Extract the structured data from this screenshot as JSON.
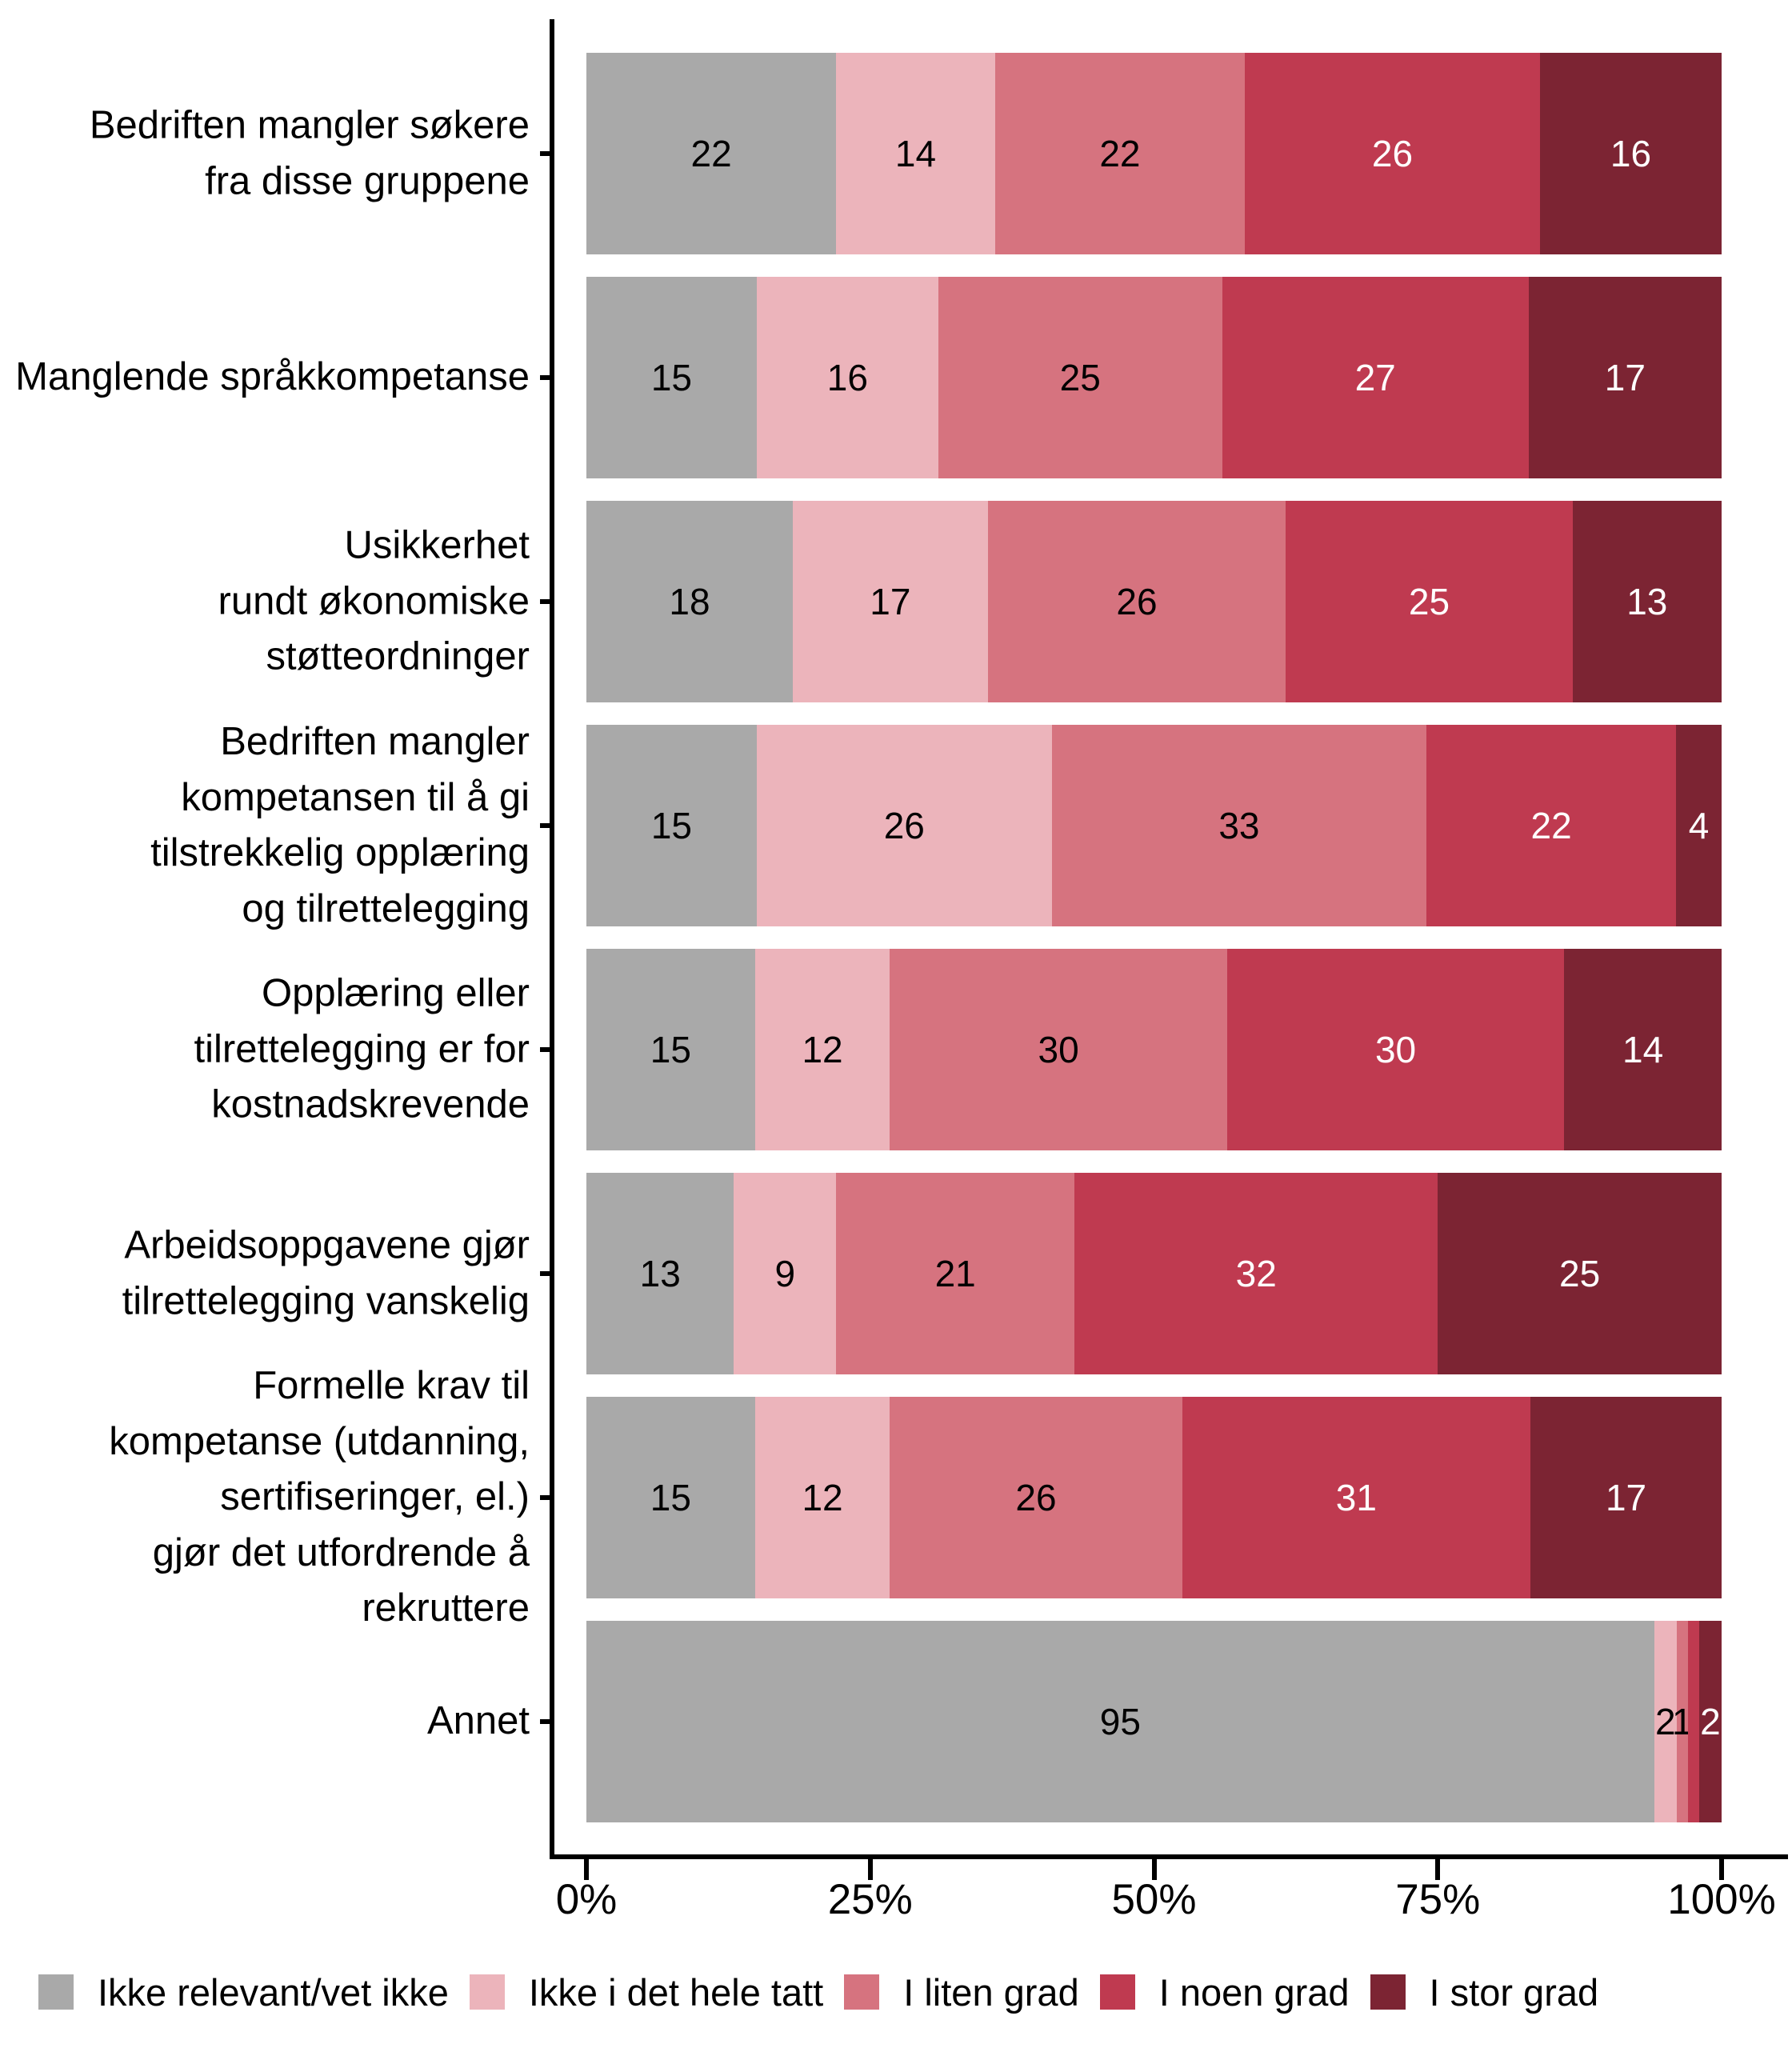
{
  "figure": {
    "background": "#ffffff",
    "axis_color": "#000000"
  },
  "chart_data": {
    "type": "bar",
    "variant": "horizontal-stacked",
    "unit": "percent",
    "grid": false,
    "title": "",
    "xlabel": "",
    "ylabel": "",
    "x_axis": {
      "ticks": [
        "0%",
        "25%",
        "50%",
        "75%",
        "100%"
      ],
      "range": [
        0,
        100
      ]
    },
    "series": [
      "Ikke relevant/vet ikke",
      "Ikke i det hele tatt",
      "I liten grad",
      "I noen grad",
      "I stor grad"
    ],
    "series_colors": [
      "#a9a9a9",
      "#ecb4bb",
      "#d6737f",
      "#bf3a50",
      "#7c2433"
    ],
    "value_label_colors": [
      "#000000",
      "#000000",
      "#000000",
      "#ffffff",
      "#ffffff"
    ],
    "rows": [
      {
        "category": "Bedriften mangler søkere\nfra disse gruppene",
        "values": [
          22,
          14,
          22,
          26,
          16
        ],
        "labels": [
          "22",
          "14",
          "22",
          "26",
          "16"
        ]
      },
      {
        "category": "Manglende språkkompetanse",
        "values": [
          15,
          16,
          25,
          27,
          17
        ],
        "labels": [
          "15",
          "16",
          "25",
          "27",
          "17"
        ]
      },
      {
        "category": "Usikkerhet\nrundt økonomiske\nstøtteordninger",
        "values": [
          18,
          17,
          26,
          25,
          13
        ],
        "labels": [
          "18",
          "17",
          "26",
          "25",
          "13"
        ]
      },
      {
        "category": "Bedriften mangler\nkompetansen til å gi\ntilstrekkelig opplæring\nog tilrettelegging",
        "values": [
          15,
          26,
          33,
          22,
          4
        ],
        "labels": [
          "15",
          "26",
          "33",
          "22",
          "4"
        ]
      },
      {
        "category": "Opplæring eller\ntilrettelegging er for\nkostnadskrevende",
        "values": [
          15,
          12,
          30,
          30,
          14
        ],
        "labels": [
          "15",
          "12",
          "30",
          "30",
          "14"
        ]
      },
      {
        "category": "Arbeidsoppgavene gjør\ntilrettelegging vanskelig",
        "values": [
          13,
          9,
          21,
          32,
          25
        ],
        "labels": [
          "13",
          "9",
          "21",
          "32",
          "25"
        ]
      },
      {
        "category": "Formelle krav til\nkompetanse (utdanning,\nsertifiseringer, el.)\ngjør det utfordrende å\nrekruttere",
        "values": [
          15,
          12,
          26,
          31,
          17
        ],
        "labels": [
          "15",
          "12",
          "26",
          "31",
          "17"
        ]
      },
      {
        "category": "Annet",
        "values": [
          95,
          2,
          1,
          1,
          2
        ],
        "labels": [
          "95",
          "2",
          "1",
          "",
          "2"
        ]
      }
    ],
    "legend": {
      "position": "bottom-left",
      "entries": [
        {
          "label": "Ikke relevant/vet ikke",
          "color": "#a9a9a9"
        },
        {
          "label": "Ikke i det hele tatt",
          "color": "#ecb4bb"
        },
        {
          "label": "I liten grad",
          "color": "#d6737f"
        },
        {
          "label": "I noen grad",
          "color": "#bf3a50"
        },
        {
          "label": "I stor grad",
          "color": "#7c2433"
        }
      ]
    }
  }
}
